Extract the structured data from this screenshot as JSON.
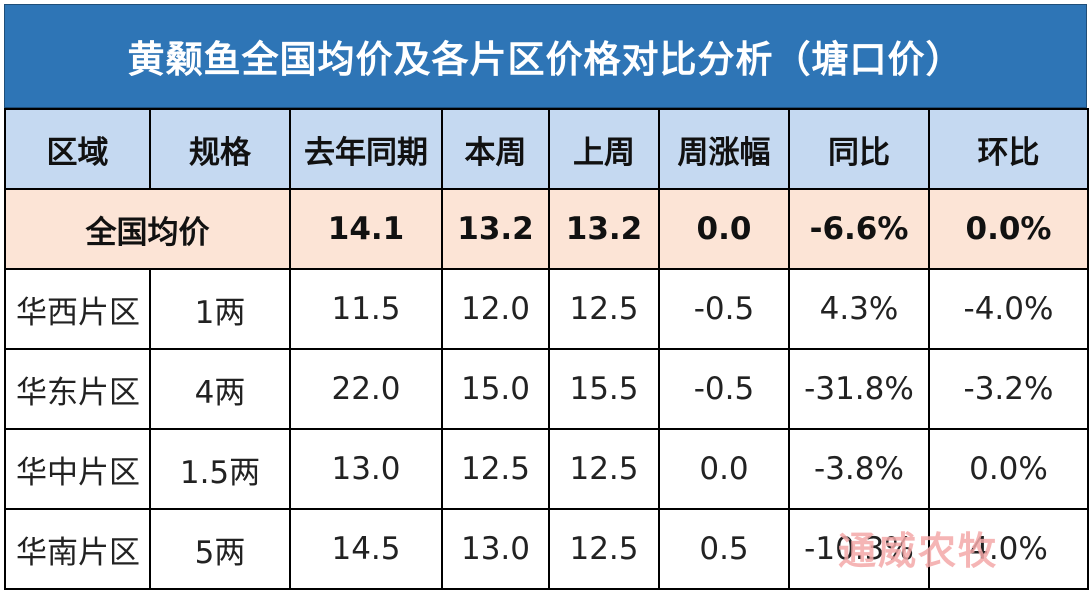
{
  "title": "黄颡鱼全国均价及各片区价格对比分析（塘口价）",
  "headers": [
    "区域",
    "规格",
    "去年同期",
    "本周",
    "上周",
    "周涨幅",
    "同比",
    "环比"
  ],
  "national_average": {
    "label": "全国均价",
    "last_year": "14.1",
    "this_week": "13.2",
    "last_week": "13.2",
    "weekly_change": "0.0",
    "yoy": "-6.6%",
    "mom": "0.0%"
  },
  "rows": [
    {
      "region": "华西片区",
      "spec": "1两",
      "last_year": "11.5",
      "this_week": "12.0",
      "last_week": "12.5",
      "weekly_change": "-0.5",
      "yoy": "4.3%",
      "mom": "-4.0%"
    },
    {
      "region": "华东片区",
      "spec": "4两",
      "last_year": "22.0",
      "this_week": "15.0",
      "last_week": "15.5",
      "weekly_change": "-0.5",
      "yoy": "-31.8%",
      "mom": "-3.2%"
    },
    {
      "region": "华中片区",
      "spec": "1.5两",
      "last_year": "13.0",
      "this_week": "12.5",
      "last_week": "12.5",
      "weekly_change": "0.0",
      "yoy": "-3.8%",
      "mom": "0.0%"
    },
    {
      "region": "华南片区",
      "spec": "5两",
      "last_year": "14.5",
      "this_week": "13.0",
      "last_week": "12.5",
      "weekly_change": "0.5",
      "yoy": "-10.3%",
      "mom": "4.0%"
    }
  ],
  "watermark": "通威农牧"
}
